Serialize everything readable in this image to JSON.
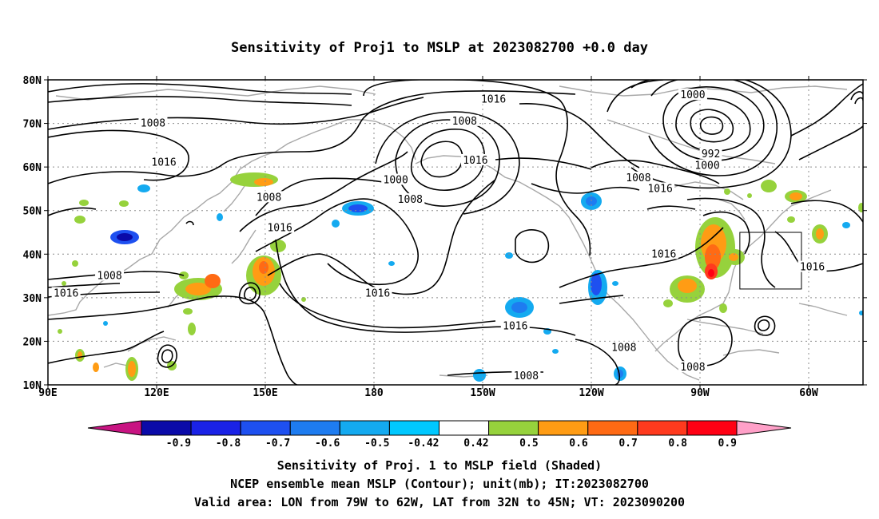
{
  "title": "Sensitivity of Proj1 to MSLP at 2023082700 +0.0 day",
  "map": {
    "lat_range": [
      10,
      80
    ],
    "lon_range_east": [
      90,
      315
    ],
    "lat_ticks": [
      {
        "value": 80,
        "label": "80N"
      },
      {
        "value": 70,
        "label": "70N"
      },
      {
        "value": 60,
        "label": "60N"
      },
      {
        "value": 50,
        "label": "50N"
      },
      {
        "value": 40,
        "label": "40N"
      },
      {
        "value": 30,
        "label": "30N"
      },
      {
        "value": 20,
        "label": "20N"
      },
      {
        "value": 10,
        "label": "10N"
      }
    ],
    "lon_ticks": [
      {
        "value": 90,
        "label": "90E"
      },
      {
        "value": 120,
        "label": "120E"
      },
      {
        "value": 150,
        "label": "150E"
      },
      {
        "value": 180,
        "label": "180"
      },
      {
        "value": 210,
        "label": "150W"
      },
      {
        "value": 240,
        "label": "120W"
      },
      {
        "value": 270,
        "label": "90W"
      },
      {
        "value": 300,
        "label": "60W"
      }
    ],
    "contour_labels": [
      {
        "text": "1016",
        "lon": 213,
        "lat": 75.5
      },
      {
        "text": "1008",
        "lon": 119,
        "lat": 70
      },
      {
        "text": "1008",
        "lon": 205,
        "lat": 70.5
      },
      {
        "text": "1000",
        "lon": 268,
        "lat": 76.5
      },
      {
        "text": "1016",
        "lon": 122,
        "lat": 61
      },
      {
        "text": "1016",
        "lon": 208,
        "lat": 61.5
      },
      {
        "text": "1000",
        "lon": 186,
        "lat": 57
      },
      {
        "text": "992",
        "lon": 273,
        "lat": 63
      },
      {
        "text": "1000",
        "lon": 272,
        "lat": 60.3
      },
      {
        "text": "1008",
        "lon": 253,
        "lat": 57.5
      },
      {
        "text": "1016",
        "lon": 259,
        "lat": 55
      },
      {
        "text": "1008",
        "lon": 151,
        "lat": 53
      },
      {
        "text": "1008",
        "lon": 190,
        "lat": 52.5
      },
      {
        "text": "1016",
        "lon": 154,
        "lat": 46
      },
      {
        "text": "1016",
        "lon": 260,
        "lat": 40
      },
      {
        "text": "1016",
        "lon": 301,
        "lat": 37
      },
      {
        "text": "1008",
        "lon": 107,
        "lat": 35
      },
      {
        "text": "1016",
        "lon": 95,
        "lat": 31
      },
      {
        "text": "1016",
        "lon": 181,
        "lat": 31
      },
      {
        "text": "1016",
        "lon": 219,
        "lat": 23.5
      },
      {
        "text": "1008",
        "lon": 249,
        "lat": 18.5
      },
      {
        "text": "1008",
        "lon": 268,
        "lat": 14
      },
      {
        "text": "1008",
        "lon": 222,
        "lat": 12
      }
    ],
    "valid_box": {
      "lon_west": 79,
      "lon_east": 62,
      "lat_south": 32,
      "lat_north": 45
    }
  },
  "colorbar": {
    "labels": [
      "-0.9",
      "-0.8",
      "-0.7",
      "-0.6",
      "-0.5",
      "-0.42",
      "0.42",
      "0.5",
      "0.6",
      "0.7",
      "0.8",
      "0.9"
    ],
    "colors": [
      "#0a0aa8",
      "#1a22e6",
      "#1e50f0",
      "#1e7cf0",
      "#14aaf0",
      "#00c8ff",
      "#ffffff",
      "#96d23c",
      "#ff9c14",
      "#ff6a14",
      "#ff3a1e",
      "#ff0014"
    ],
    "low_end_color": "#c81482",
    "high_end_color": "#ffa0c8"
  },
  "captions": [
    "Sensitivity of Proj. 1 to MSLP field (Shaded)",
    "NCEP ensemble mean MSLP (Contour); unit(mb); IT:2023082700",
    "Valid area: LON from 79W to 62W, LAT from 32N to 45N; VT: 2023090200"
  ]
}
